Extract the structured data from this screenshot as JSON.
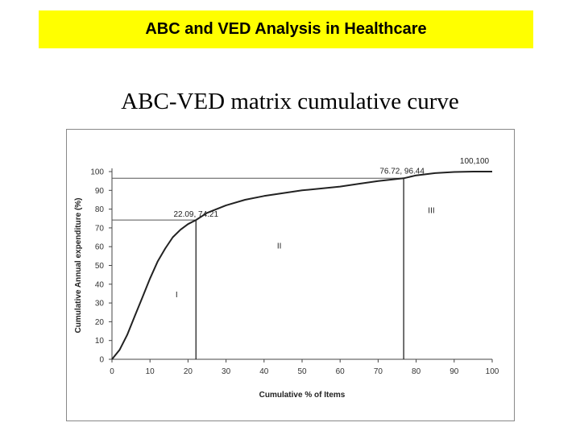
{
  "banner": {
    "title": "ABC and VED Analysis in Healthcare"
  },
  "slide": {
    "subtitle": "ABC-VED matrix cumulative curve"
  },
  "chart_data": {
    "type": "line",
    "title": "",
    "xlabel": "Cumulative % of Items",
    "ylabel": "Cumulative Annual expenditure (%)",
    "xlim": [
      0,
      100
    ],
    "ylim": [
      0,
      100
    ],
    "xticks": [
      0,
      10,
      20,
      30,
      40,
      50,
      60,
      70,
      80,
      90,
      100
    ],
    "yticks": [
      0,
      10,
      20,
      30,
      40,
      50,
      60,
      70,
      80,
      90,
      100
    ],
    "grid": false,
    "series": [
      {
        "x": [
          0,
          2,
          4,
          6,
          8,
          10,
          12,
          14,
          16,
          18,
          20,
          22.09,
          25,
          30,
          35,
          40,
          45,
          50,
          55,
          60,
          65,
          70,
          76.72,
          80,
          85,
          90,
          95,
          100
        ],
        "y": [
          0,
          5,
          13,
          23,
          33,
          43,
          52,
          59,
          65,
          69,
          72,
          74.21,
          78,
          82,
          85,
          87,
          88.5,
          90,
          91,
          92,
          93.5,
          95,
          96.44,
          98,
          99.2,
          99.8,
          100,
          100
        ]
      }
    ],
    "reference_points": [
      {
        "x": 22.09,
        "y": 74.21,
        "label": "22.09, 74.21"
      },
      {
        "x": 76.72,
        "y": 96.44,
        "label": "76.72, 96.44"
      },
      {
        "x": 100,
        "y": 100,
        "label": "100,100"
      }
    ],
    "regions": [
      {
        "label": "I",
        "x": 17,
        "y": 33
      },
      {
        "label": "II",
        "x": 44,
        "y": 59
      },
      {
        "label": "III",
        "x": 84,
        "y": 78
      }
    ]
  }
}
